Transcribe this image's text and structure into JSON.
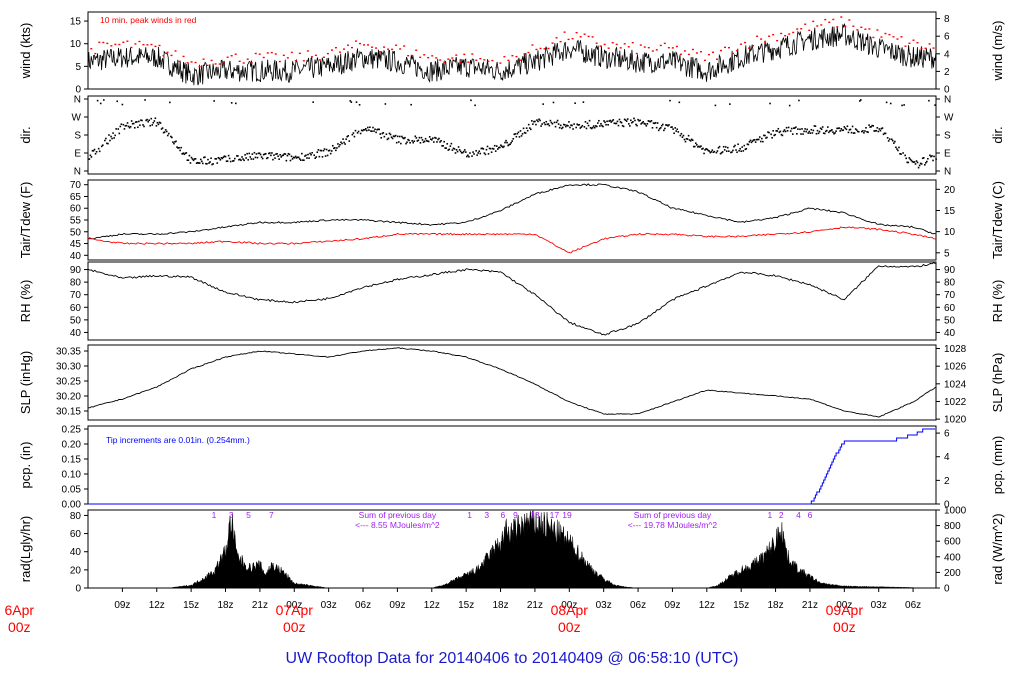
{
  "footer": {
    "title": "UW Rooftop Data for 20140406  to  20140409 @ 06:58:10  (UTC)"
  },
  "colors": {
    "trace": "#000000",
    "accent_red": "#ff0000",
    "precip_blue": "#0000ff",
    "radiation_purple": "#a020f0",
    "title_blue": "#1a1acc"
  },
  "x_axis": {
    "hour_ticks": [
      "09z",
      "12z",
      "15z",
      "18z",
      "21z",
      "00z",
      "03z",
      "06z",
      "09z",
      "12z",
      "15z",
      "18z",
      "21z",
      "00z",
      "03z",
      "06z",
      "09z",
      "12z",
      "15z",
      "18z",
      "21z",
      "00z",
      "03z",
      "06z"
    ],
    "day_labels": [
      {
        "date": "6Apr",
        "hour": "00z",
        "hour_utc": 0
      },
      {
        "date": "07Apr",
        "hour": "00z",
        "hour_utc": 24
      },
      {
        "date": "08Apr",
        "hour": "00z",
        "hour_utc": 48
      },
      {
        "date": "09Apr",
        "hour": "00z",
        "hour_utc": 72
      }
    ]
  },
  "chart_data": [
    {
      "type": "line",
      "id": "wind",
      "ylabel": "wind (kts)",
      "ylabel_right": "wind (m/s)",
      "ylim": [
        0,
        17
      ],
      "yticks": [
        0,
        5,
        10,
        15
      ],
      "right_ylim": [
        0,
        8.75
      ],
      "right_yticks": [
        0,
        2,
        4,
        6,
        8
      ],
      "annotation": "10 min. peak winds in red",
      "x_hours": [
        6,
        9,
        12,
        15,
        18,
        21,
        24,
        27,
        30,
        33,
        36,
        39,
        42,
        45,
        48,
        51,
        54,
        57,
        60,
        63,
        66,
        69,
        72,
        75,
        78,
        80
      ],
      "series": [
        {
          "values": [
            6,
            7,
            7,
            3,
            4,
            4,
            4,
            5,
            7,
            6,
            4,
            5,
            4,
            6,
            9,
            7,
            6,
            6,
            4,
            7,
            9,
            11,
            12,
            9,
            7,
            7
          ]
        },
        {
          "values": [
            9,
            10,
            9,
            6,
            7,
            7,
            7,
            8,
            10,
            9,
            7,
            7,
            6,
            9,
            12,
            10,
            9,
            9,
            7,
            10,
            12,
            14,
            15,
            12,
            10,
            9
          ]
        }
      ]
    },
    {
      "type": "scatter",
      "id": "dir",
      "ylabel": "dir.",
      "ylabel_right": "dir.",
      "ylim": [
        0,
        360
      ],
      "yticks": [
        "N",
        "E",
        "S",
        "W",
        "N"
      ],
      "right_yticks": [
        "N",
        "E",
        "S",
        "W",
        "N"
      ],
      "x_hours": [
        6,
        9,
        12,
        15,
        18,
        21,
        24,
        27,
        30,
        33,
        36,
        39,
        42,
        45,
        48,
        51,
        54,
        57,
        60,
        63,
        66,
        69,
        72,
        75,
        78,
        80
      ],
      "values": [
        70,
        230,
        250,
        50,
        60,
        80,
        70,
        100,
        220,
        160,
        160,
        90,
        120,
        250,
        230,
        240,
        250,
        210,
        100,
        120,
        200,
        210,
        210,
        215,
        30,
        80
      ]
    },
    {
      "type": "line",
      "id": "temp",
      "ylabel": "Tair/Tdew (F)",
      "ylabel_right": "Tair/Tdew (C)",
      "ylim": [
        38,
        72
      ],
      "yticks": [
        40,
        45,
        50,
        55,
        60,
        65,
        70
      ],
      "right_ylim": [
        3.3,
        22.2
      ],
      "right_yticks": [
        5,
        10,
        15,
        20
      ],
      "x_hours": [
        6,
        9,
        12,
        15,
        18,
        21,
        24,
        27,
        30,
        33,
        36,
        39,
        42,
        45,
        48,
        51,
        54,
        57,
        60,
        63,
        66,
        69,
        72,
        75,
        78,
        80
      ],
      "series": [
        {
          "name": "Tair",
          "values": [
            47,
            49,
            49,
            50,
            52,
            54,
            54,
            55,
            55,
            54,
            53,
            54,
            59,
            66,
            70,
            70,
            67,
            60,
            57,
            54,
            56,
            60,
            58,
            53,
            52,
            49
          ]
        },
        {
          "name": "Tdew",
          "values": [
            47,
            45,
            45,
            45,
            46,
            45,
            45,
            46,
            47,
            49,
            49,
            49,
            49,
            49,
            41,
            47,
            49,
            49,
            48,
            48,
            49,
            50,
            52,
            51,
            49,
            47
          ]
        }
      ]
    },
    {
      "type": "line",
      "id": "rh",
      "ylabel": "RH (%)",
      "ylabel_right": "RH (%)",
      "ylim": [
        34,
        96
      ],
      "yticks": [
        40,
        50,
        60,
        70,
        80,
        90
      ],
      "x_hours": [
        6,
        9,
        12,
        15,
        18,
        21,
        24,
        27,
        30,
        33,
        36,
        39,
        42,
        45,
        48,
        51,
        54,
        57,
        60,
        63,
        66,
        69,
        72,
        75,
        78,
        80
      ],
      "values": [
        90,
        83,
        85,
        84,
        72,
        66,
        64,
        67,
        76,
        82,
        86,
        90,
        88,
        70,
        48,
        38,
        47,
        66,
        77,
        88,
        85,
        78,
        66,
        93,
        92,
        95
      ]
    },
    {
      "type": "line",
      "id": "slp",
      "ylabel": "SLP (inHg)",
      "ylabel_right": "SLP (hPa)",
      "ylim": [
        30.12,
        30.37
      ],
      "yticks": [
        30.15,
        30.2,
        30.25,
        30.3,
        30.35
      ],
      "right_ylim": [
        1019.9,
        1028.4
      ],
      "right_yticks": [
        1020,
        1022,
        1024,
        1026,
        1028
      ],
      "x_hours": [
        6,
        9,
        12,
        15,
        18,
        21,
        24,
        27,
        30,
        33,
        36,
        39,
        42,
        45,
        48,
        51,
        54,
        57,
        60,
        63,
        66,
        69,
        72,
        75,
        78,
        80
      ],
      "values": [
        30.16,
        30.19,
        30.23,
        30.29,
        30.33,
        30.35,
        30.34,
        30.33,
        30.35,
        30.36,
        30.35,
        30.33,
        30.29,
        30.24,
        30.18,
        30.14,
        30.14,
        30.18,
        30.22,
        30.21,
        30.2,
        30.19,
        30.15,
        30.13,
        30.18,
        30.23
      ]
    },
    {
      "type": "line",
      "id": "pcp",
      "ylabel": "pcp. (in)",
      "ylabel_right": "pcp. (mm)",
      "ylim": [
        0,
        0.26
      ],
      "yticks": [
        0.0,
        0.05,
        0.1,
        0.15,
        0.2,
        0.25
      ],
      "right_ylim": [
        0,
        6.6
      ],
      "right_yticks": [
        0,
        2,
        4,
        6
      ],
      "annotation": "Tip increments are 0.01in. (0.254mm.)",
      "x_hours": [
        6,
        66,
        69,
        70,
        71,
        72,
        73,
        76,
        78,
        79,
        80
      ],
      "values": [
        0,
        0,
        0,
        0.06,
        0.15,
        0.21,
        0.21,
        0.21,
        0.23,
        0.25,
        0.25
      ]
    },
    {
      "type": "area",
      "id": "rad",
      "ylabel": "rad(Lgly/hr)",
      "ylabel_right": "rad (W/m^2)",
      "ylim": [
        0,
        86
      ],
      "yticks": [
        0,
        20,
        40,
        60,
        80
      ],
      "right_ylim": [
        0,
        1000
      ],
      "right_yticks": [
        0,
        200,
        400,
        600,
        800,
        1000
      ],
      "x_hours": [
        13,
        15,
        16,
        17,
        18,
        18.5,
        19,
        20,
        21,
        21.5,
        22,
        23,
        24,
        27,
        36,
        37,
        40,
        42,
        42.5,
        43,
        44,
        45,
        46,
        47,
        48,
        49,
        50,
        51,
        52,
        53,
        54,
        60,
        61,
        62,
        63,
        64,
        65,
        66,
        66.5,
        67,
        68,
        70,
        72,
        80
      ],
      "values": [
        0,
        3,
        10,
        18,
        40,
        75,
        35,
        22,
        25,
        15,
        25,
        18,
        5,
        0,
        0,
        3,
        20,
        50,
        62,
        60,
        70,
        72,
        68,
        60,
        50,
        35,
        20,
        10,
        3,
        1,
        0,
        0,
        3,
        12,
        20,
        25,
        35,
        50,
        70,
        35,
        20,
        5,
        2,
        0
      ],
      "daily_sums": [
        {
          "text": "Sum of previous day",
          "value": "<--- 8.55 MJoules/m^2",
          "hour_utc": 33
        },
        {
          "text": "Sum of previous day",
          "value": "<--- 19.78 MJoules/m^2",
          "hour_utc": 57
        }
      ],
      "hour_markers": [
        {
          "hour_utc": 17,
          "label": "1"
        },
        {
          "hour_utc": 18.5,
          "label": "3"
        },
        {
          "hour_utc": 20,
          "label": "5"
        },
        {
          "hour_utc": 22,
          "label": "7"
        },
        {
          "hour_utc": 39.3,
          "label": "1"
        },
        {
          "hour_utc": 40.8,
          "label": "3"
        },
        {
          "hour_utc": 42.2,
          "label": "6"
        },
        {
          "hour_utc": 43.3,
          "label": "9"
        },
        {
          "hour_utc": 45,
          "label": "13"
        },
        {
          "hour_utc": 46.7,
          "label": "17"
        },
        {
          "hour_utc": 47.8,
          "label": "19"
        },
        {
          "hour_utc": 65.5,
          "label": "1"
        },
        {
          "hour_utc": 66.5,
          "label": "2"
        },
        {
          "hour_utc": 68,
          "label": "4"
        },
        {
          "hour_utc": 69,
          "label": "6"
        }
      ]
    }
  ]
}
